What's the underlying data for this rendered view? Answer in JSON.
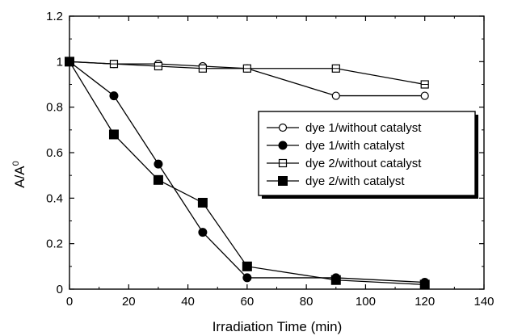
{
  "chart_data": {
    "type": "line",
    "title": "",
    "xlabel": "Irradiation Time (min)",
    "ylabel": "A/A",
    "ylabel_superscript": "0",
    "xlim": [
      0,
      140
    ],
    "ylim": [
      0,
      1.2
    ],
    "xticks": [
      0,
      20,
      40,
      60,
      80,
      100,
      120,
      140
    ],
    "yticks": [
      0,
      0.2,
      0.4,
      0.6,
      0.8,
      1,
      1.2
    ],
    "xtick_labels": [
      "0",
      "20",
      "40",
      "60",
      "80",
      "100",
      "120",
      "140"
    ],
    "ytick_labels": [
      "0",
      "0.2",
      "0.4",
      "0.6",
      "0.8",
      "1",
      "1.2"
    ],
    "grid": false,
    "legend_position": "right",
    "series": [
      {
        "name": "dye 1/without catalyst",
        "marker": "open-circle",
        "x": [
          0,
          15,
          30,
          45,
          60,
          90,
          120
        ],
        "y": [
          1.0,
          0.99,
          0.99,
          0.98,
          0.97,
          0.85,
          0.85
        ]
      },
      {
        "name": "dye 1/with catalyst",
        "marker": "filled-circle",
        "x": [
          0,
          15,
          30,
          45,
          60,
          90,
          120
        ],
        "y": [
          1.0,
          0.85,
          0.55,
          0.25,
          0.05,
          0.05,
          0.03
        ]
      },
      {
        "name": "dye 2/without catalyst",
        "marker": "open-square",
        "x": [
          0,
          15,
          30,
          45,
          60,
          90,
          120
        ],
        "y": [
          1.0,
          0.99,
          0.98,
          0.97,
          0.97,
          0.97,
          0.9
        ]
      },
      {
        "name": "dye 2/with catalyst",
        "marker": "filled-square",
        "x": [
          0,
          15,
          30,
          45,
          60,
          90,
          120
        ],
        "y": [
          1.0,
          0.68,
          0.48,
          0.38,
          0.1,
          0.04,
          0.02
        ]
      }
    ]
  }
}
